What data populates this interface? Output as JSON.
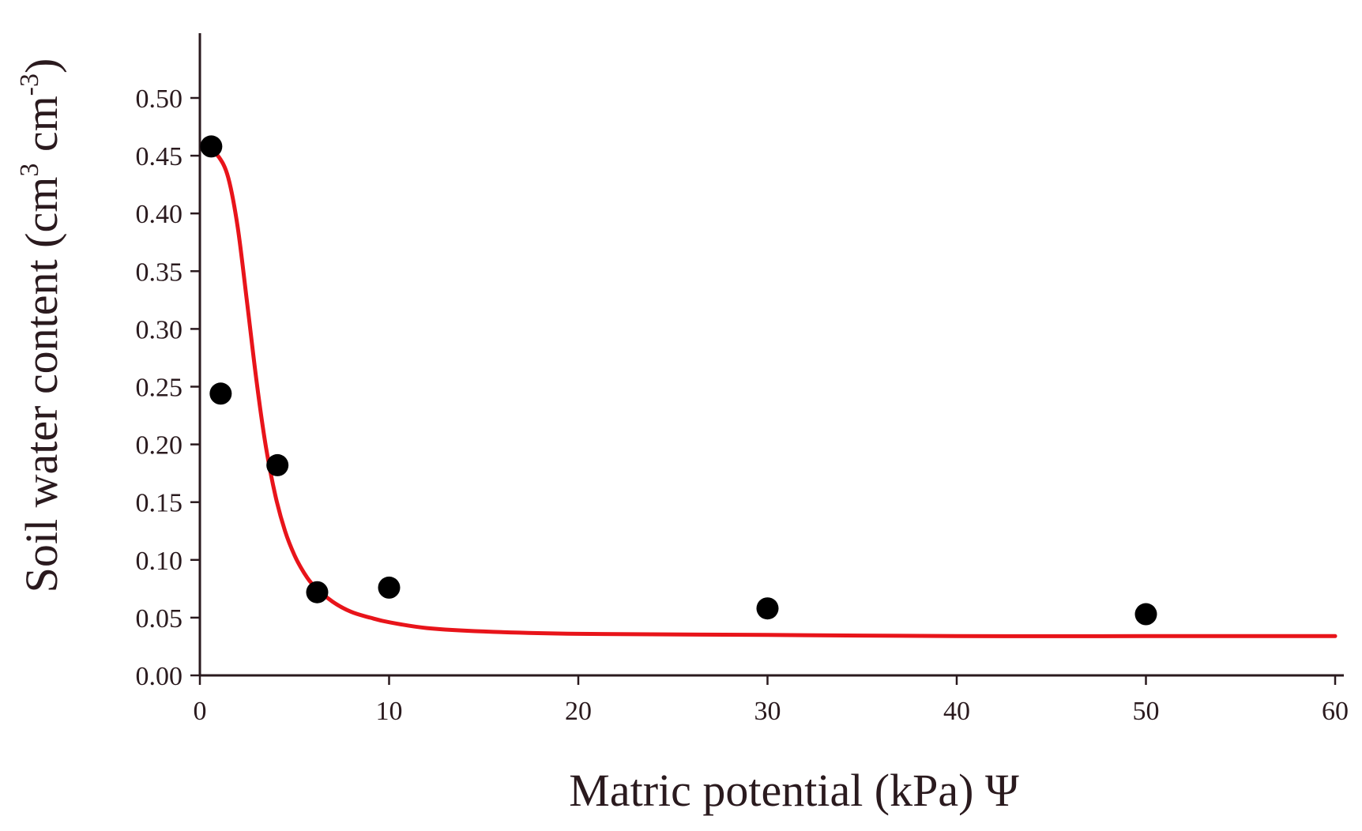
{
  "chart_data": {
    "type": "scatter",
    "title": "",
    "xlabel": "Matric potential (kPa) Ψ",
    "ylabel": {
      "prefix": "Soil water content (cm",
      "sup1": "3",
      "middle": " cm",
      "sup2": "-3",
      "suffix": ")"
    },
    "xlim": [
      0,
      60
    ],
    "ylim": [
      0.0,
      0.55
    ],
    "x_ticks": [
      0,
      10,
      20,
      30,
      40,
      50,
      60
    ],
    "x_tick_labels": [
      "0",
      "10",
      "20",
      "30",
      "40",
      "50",
      "60"
    ],
    "y_ticks": [
      0.0,
      0.05,
      0.1,
      0.15,
      0.2,
      0.25,
      0.3,
      0.35,
      0.4,
      0.45,
      0.5
    ],
    "y_tick_labels": [
      "0.00",
      "0.05",
      "0.10",
      "0.15",
      "0.20",
      "0.25",
      "0.30",
      "0.35",
      "0.40",
      "0.45",
      "0.50"
    ],
    "grid": false,
    "series": [
      {
        "kind": "scatter",
        "color": "#000000",
        "points": [
          {
            "x": 0.6,
            "y": 0.458
          },
          {
            "x": 1.1,
            "y": 0.244
          },
          {
            "x": 4.1,
            "y": 0.182
          },
          {
            "x": 6.2,
            "y": 0.072
          },
          {
            "x": 10.0,
            "y": 0.076
          },
          {
            "x": 30.0,
            "y": 0.058
          },
          {
            "x": 50.0,
            "y": 0.053
          }
        ]
      },
      {
        "kind": "line",
        "color": "#e8141a",
        "x": [
          0.5,
          1,
          1.5,
          2,
          2.5,
          3,
          3.5,
          4,
          4.5,
          5,
          5.5,
          6,
          7,
          8,
          9,
          10,
          12,
          15,
          20,
          30,
          40,
          50,
          60
        ],
        "y": [
          0.455,
          0.449,
          0.431,
          0.388,
          0.322,
          0.254,
          0.197,
          0.155,
          0.125,
          0.104,
          0.089,
          0.078,
          0.064,
          0.055,
          0.05,
          0.046,
          0.041,
          0.038,
          0.036,
          0.035,
          0.034,
          0.034,
          0.034
        ]
      }
    ]
  }
}
